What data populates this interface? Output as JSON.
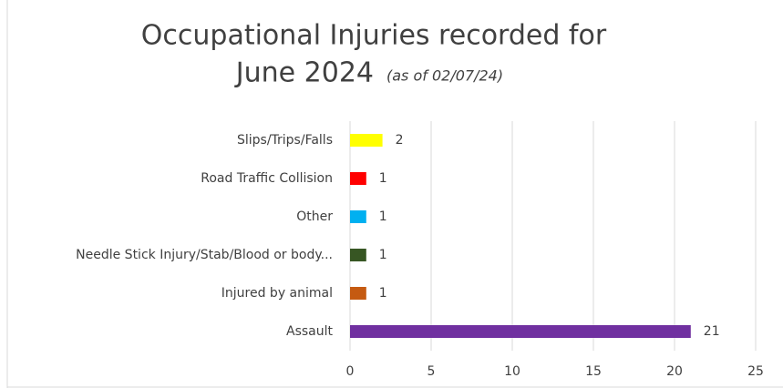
{
  "chart_data": {
    "type": "hbar",
    "title": [
      "Occupational Injuries recorded for",
      "June 2024"
    ],
    "subtitle": "(as of 02/07/24)",
    "categories": [
      "Slips/Trips/Falls",
      "Road Traffic Collision",
      "Other",
      "Needle Stick Injury/Stab/Blood or body...",
      "Injured by animal",
      "Assault"
    ],
    "values": [
      2,
      1,
      1,
      1,
      1,
      21
    ],
    "colors": [
      "#ffff00",
      "#ff0000",
      "#00b0f0",
      "#375623",
      "#c55a11",
      "#7030a0"
    ],
    "xlim": [
      0,
      25
    ],
    "xticks": [
      0,
      5,
      10,
      15,
      20,
      25
    ],
    "grid": true
  }
}
